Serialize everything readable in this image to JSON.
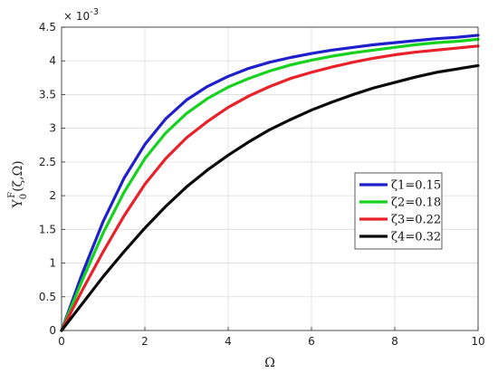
{
  "chart_data": {
    "type": "line",
    "xlabel": "Ω",
    "ylabel": "Y",
    "ylabel_superscript": "F",
    "ylabel_subscript": "0",
    "ylabel_args": "(ζ,Ω)",
    "y_exponent_base": "× 10",
    "y_exponent": "-3",
    "xlim": [
      0,
      10
    ],
    "ylim": [
      0,
      4.5
    ],
    "x_ticks": [
      "0",
      "2",
      "4",
      "6",
      "8",
      "10"
    ],
    "y_ticks": [
      "0",
      "0.5",
      "1",
      "1.5",
      "2",
      "2.5",
      "3",
      "3.5",
      "4",
      "4.5"
    ],
    "grid": true,
    "legend_position": "center-right",
    "x": [
      0,
      0.5,
      1,
      1.5,
      2,
      2.5,
      3,
      3.5,
      4,
      4.5,
      5,
      5.5,
      6,
      6.5,
      7,
      7.5,
      8,
      8.5,
      9,
      9.5,
      10
    ],
    "series": [
      {
        "name": "ζ1=0.15",
        "color": "#1f1fcc",
        "values": [
          0,
          0.85,
          1.62,
          2.26,
          2.76,
          3.14,
          3.42,
          3.62,
          3.77,
          3.89,
          3.98,
          4.05,
          4.11,
          4.16,
          4.2,
          4.24,
          4.27,
          4.3,
          4.33,
          4.35,
          4.38
        ]
      },
      {
        "name": "ζ2=0.18",
        "color": "#16d21f",
        "values": [
          0,
          0.75,
          1.45,
          2.05,
          2.55,
          2.93,
          3.22,
          3.44,
          3.61,
          3.74,
          3.85,
          3.94,
          4.01,
          4.07,
          4.12,
          4.16,
          4.2,
          4.24,
          4.27,
          4.29,
          4.32
        ]
      },
      {
        "name": "ζ3=0.22",
        "color": "#e8212a",
        "values": [
          0,
          0.6,
          1.17,
          1.7,
          2.17,
          2.55,
          2.86,
          3.1,
          3.31,
          3.48,
          3.62,
          3.74,
          3.83,
          3.91,
          3.98,
          4.04,
          4.09,
          4.13,
          4.16,
          4.19,
          4.22
        ]
      },
      {
        "name": "ζ4=0.32",
        "color": "#0a0a0a",
        "values": [
          0,
          0.4,
          0.8,
          1.17,
          1.52,
          1.84,
          2.13,
          2.38,
          2.6,
          2.8,
          2.98,
          3.13,
          3.27,
          3.39,
          3.5,
          3.6,
          3.68,
          3.76,
          3.83,
          3.88,
          3.93
        ]
      }
    ]
  }
}
